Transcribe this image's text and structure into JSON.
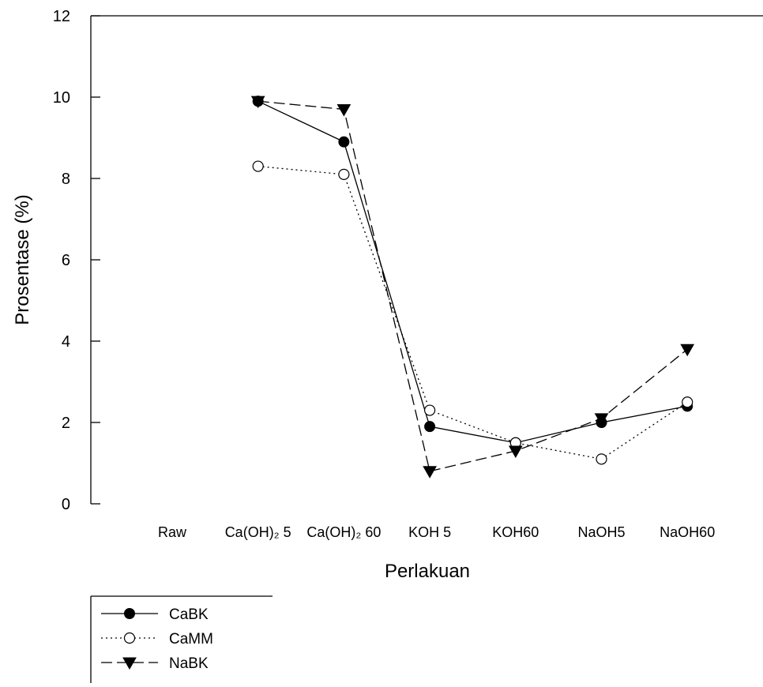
{
  "chart_data": {
    "type": "line",
    "title": "",
    "xlabel": "Perlakuan",
    "ylabel": "Prosentase (%)",
    "ylim": [
      0,
      12
    ],
    "yticks": [
      "0",
      "2",
      "4",
      "6",
      "8",
      "10",
      "12"
    ],
    "categories": [
      "Raw",
      "Ca(OH)₂ 5",
      "Ca(OH)₂ 60",
      "KOH 5",
      "KOH60",
      "NaOH5",
      "NaOH60"
    ],
    "grid": false,
    "legend_position": "bottom-left",
    "series": [
      {
        "name": "CaBK",
        "marker": "filled-circle",
        "line_style": "solid",
        "color": "#000000",
        "values": [
          null,
          9.9,
          8.9,
          1.9,
          1.5,
          2.0,
          2.4
        ]
      },
      {
        "name": "CaMM",
        "marker": "open-circle",
        "line_style": "dotted",
        "color": "#000000",
        "values": [
          null,
          8.3,
          8.1,
          2.3,
          1.5,
          1.1,
          2.5
        ]
      },
      {
        "name": "NaBK",
        "marker": "filled-triangle-down",
        "line_style": "dashed",
        "color": "#000000",
        "values": [
          null,
          9.9,
          9.7,
          0.8,
          1.3,
          2.1,
          3.8
        ]
      }
    ]
  }
}
